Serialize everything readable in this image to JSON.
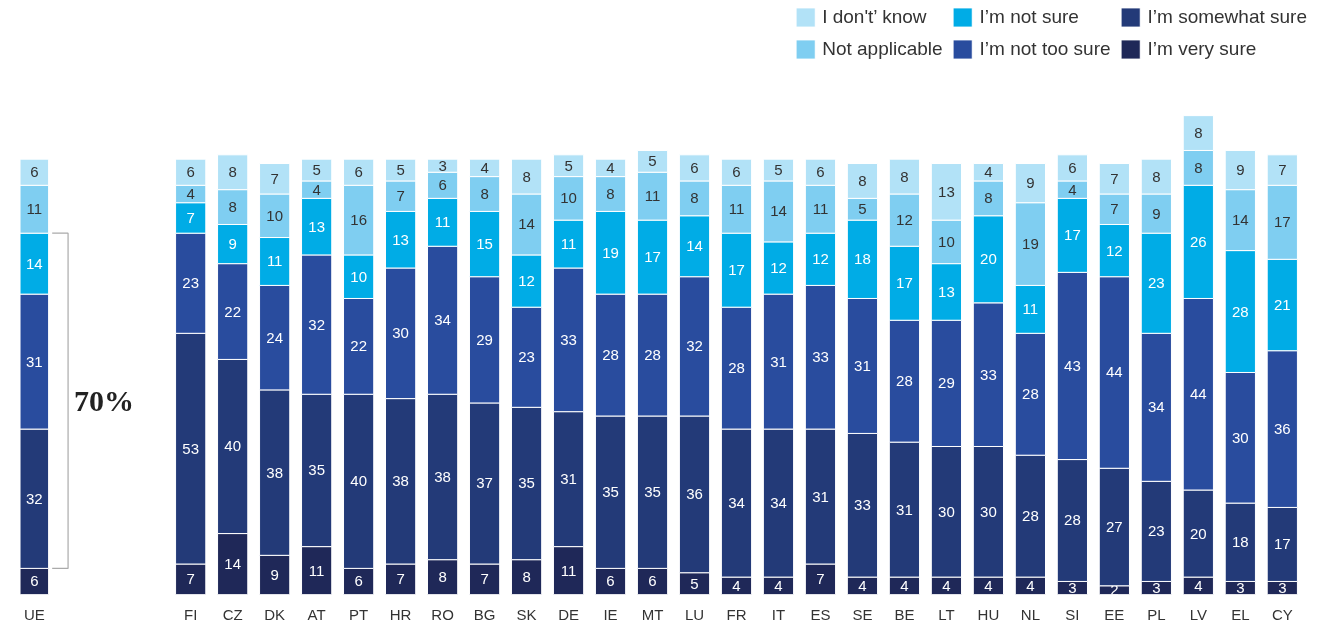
{
  "chart_data": [
    {
      "type": "bar",
      "stacked": true,
      "data_labels": true,
      "grid": false,
      "categories": [
        "UE"
      ],
      "series": [
        {
          "color": "#1f2858",
          "values": [
            6
          ]
        },
        {
          "color": "#233a78",
          "values": [
            32
          ]
        },
        {
          "color": "#294c9e",
          "values": [
            31
          ]
        },
        {
          "color": "#00ace6",
          "values": [
            14
          ]
        },
        {
          "color": "#7fcef1",
          "values": [
            11
          ]
        },
        {
          "color": "#b2e2f7",
          "values": [
            6
          ]
        }
      ],
      "annotations": [
        "70%"
      ]
    },
    {
      "type": "bar",
      "stacked": true,
      "data_labels": true,
      "legend": "top right",
      "grid": false,
      "categories": [
        "FI",
        "CZ",
        "DK",
        "AT",
        "PT",
        "HR",
        "RO",
        "BG",
        "SK",
        "DE",
        "IE",
        "MT",
        "LU",
        "FR",
        "IT",
        "ES",
        "SE",
        "BE",
        "LT",
        "HU",
        "NL",
        "SI",
        "EE",
        "PL",
        "LV",
        "EL",
        "CY"
      ],
      "series": [
        {
          "name": "I’m very sure",
          "color": "#1f2858",
          "values": [
            7,
            14,
            9,
            11,
            6,
            7,
            8,
            7,
            8,
            11,
            6,
            6,
            5,
            4,
            4,
            7,
            4,
            4,
            4,
            4,
            4,
            3,
            2,
            3,
            4,
            3,
            3
          ]
        },
        {
          "name": "I’m somewhat sure",
          "color": "#233a78",
          "values": [
            53,
            40,
            38,
            35,
            40,
            38,
            38,
            37,
            35,
            31,
            35,
            35,
            36,
            34,
            34,
            31,
            33,
            31,
            30,
            30,
            28,
            28,
            27,
            23,
            20,
            18,
            17
          ]
        },
        {
          "name": "I’m not too sure",
          "color": "#294c9e",
          "values": [
            23,
            22,
            24,
            32,
            22,
            30,
            34,
            29,
            23,
            33,
            28,
            28,
            32,
            28,
            31,
            33,
            31,
            28,
            29,
            33,
            28,
            43,
            44,
            34,
            44,
            30,
            36
          ]
        },
        {
          "name": "I’m not sure",
          "color": "#00ace6",
          "values": [
            7,
            9,
            11,
            13,
            10,
            13,
            11,
            15,
            12,
            11,
            19,
            17,
            14,
            17,
            12,
            12,
            18,
            17,
            13,
            20,
            11,
            17,
            12,
            23,
            26,
            28,
            21
          ]
        },
        {
          "name": "Not applicable",
          "color": "#7fcef1",
          "values": [
            4,
            8,
            10,
            4,
            16,
            7,
            6,
            8,
            14,
            10,
            8,
            11,
            8,
            11,
            14,
            11,
            5,
            12,
            10,
            8,
            19,
            4,
            7,
            9,
            8,
            14,
            17
          ]
        },
        {
          "name": "I don't’ know",
          "color": "#b2e2f7",
          "values": [
            6,
            8,
            7,
            5,
            6,
            5,
            3,
            4,
            8,
            5,
            4,
            5,
            6,
            6,
            5,
            6,
            8,
            8,
            13,
            4,
            9,
            6,
            7,
            8,
            8,
            9,
            7
          ]
        }
      ]
    }
  ]
}
